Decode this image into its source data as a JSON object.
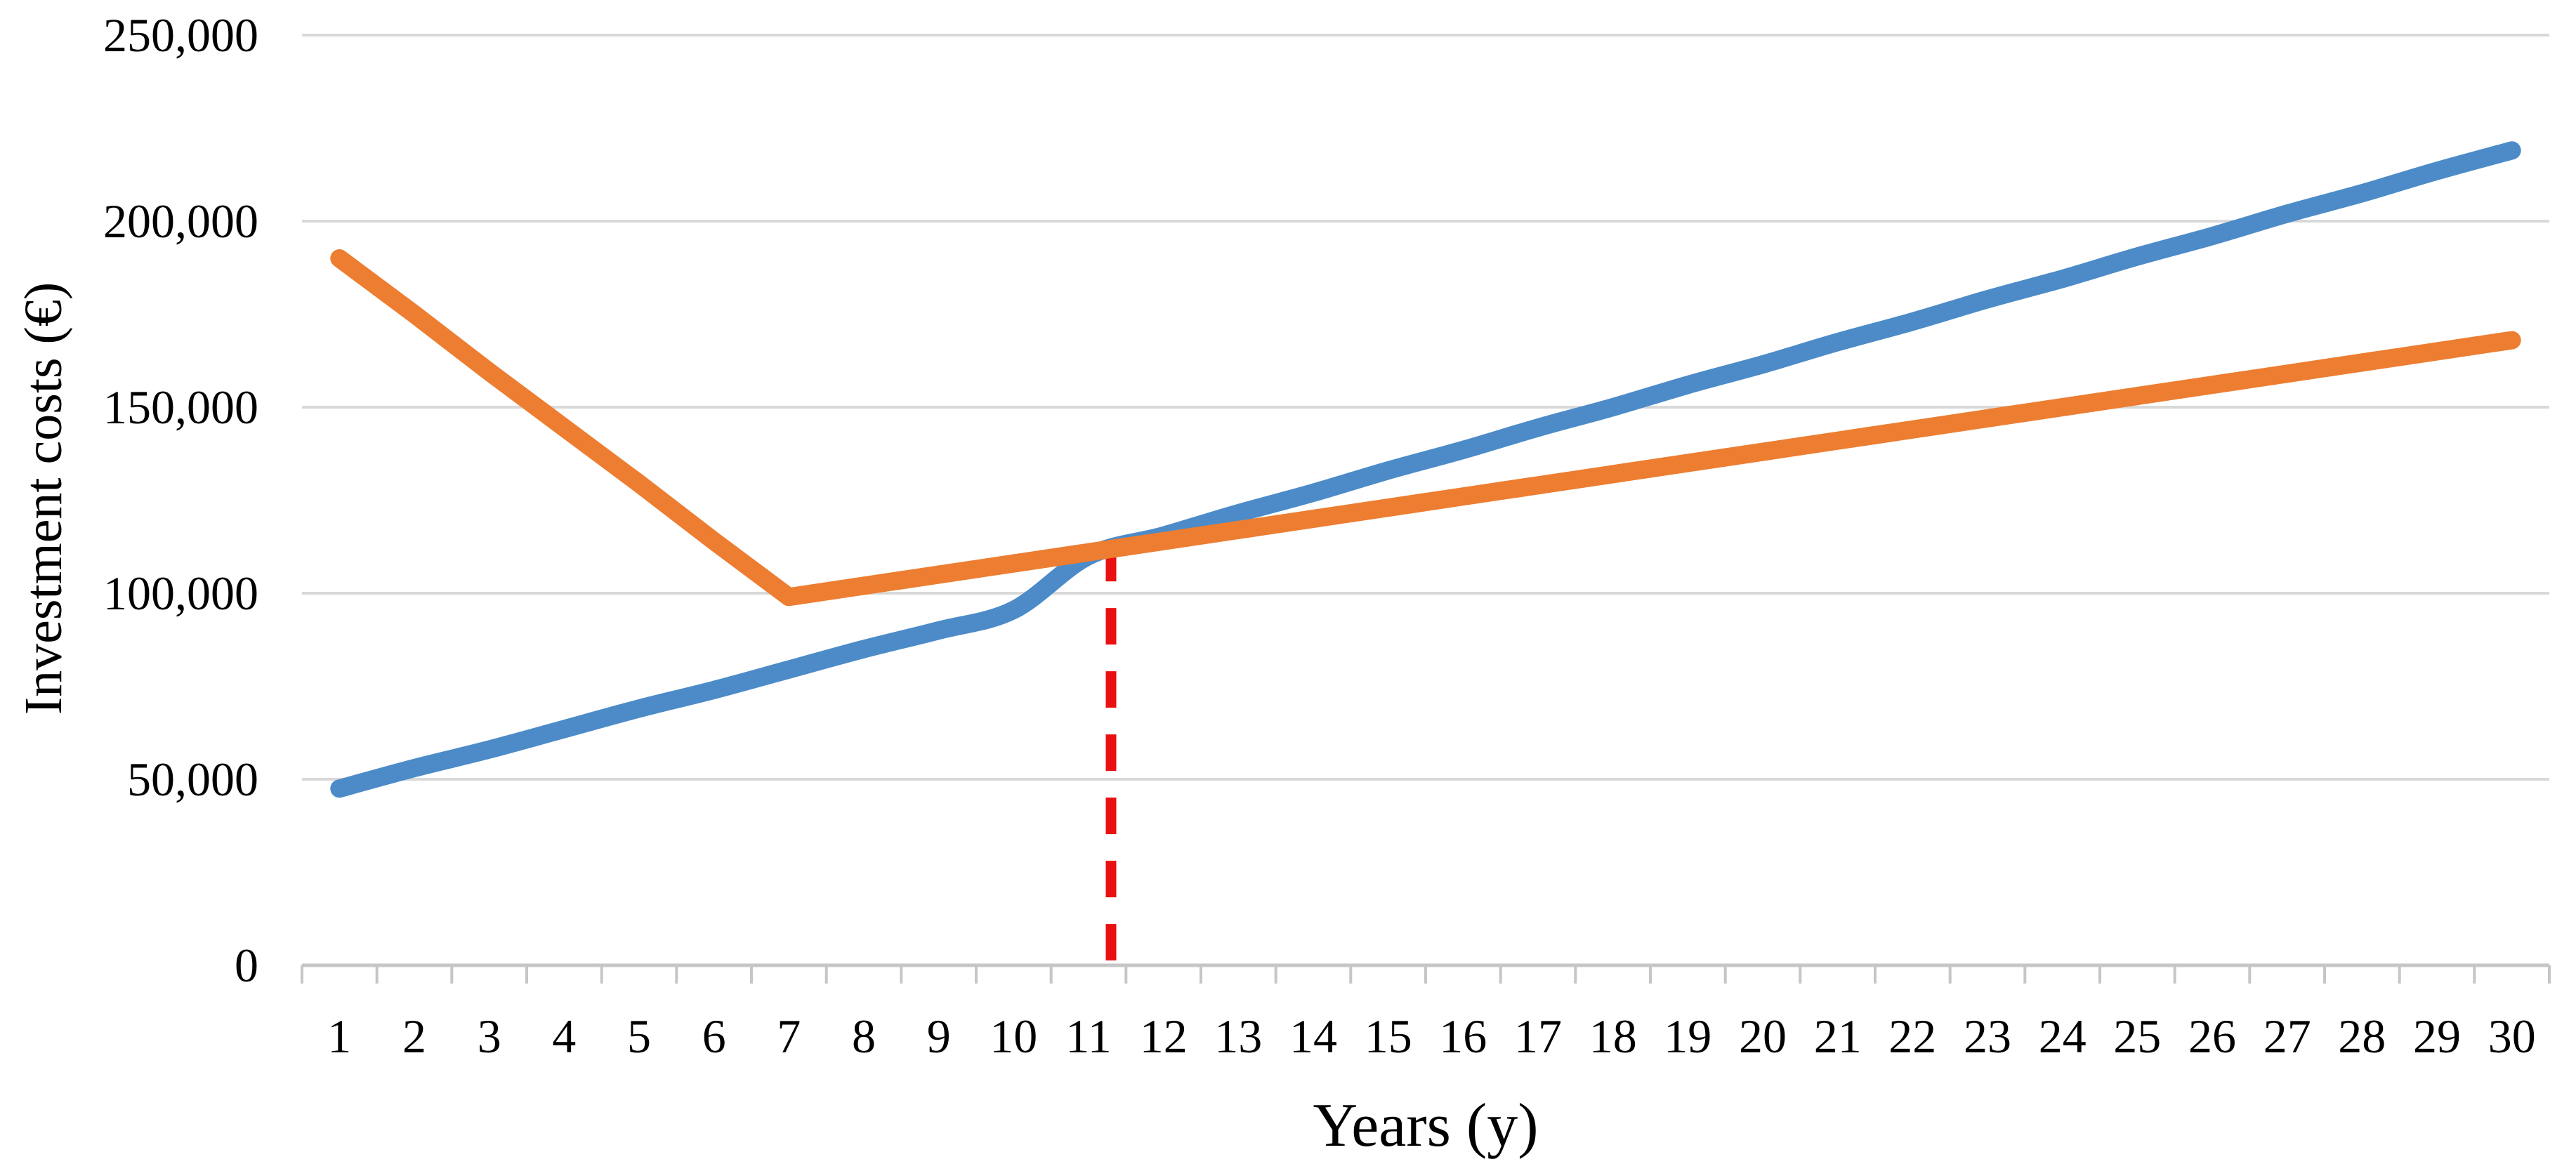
{
  "chart_data": {
    "type": "line",
    "title": "",
    "xlabel": "Years (y)",
    "ylabel": "Investment costs (€)",
    "legend": "none",
    "grid": "horizontal",
    "background": "#FFFFFF",
    "ylim": [
      0,
      250000
    ],
    "y_tick_step": 50000,
    "y_ticks": [
      {
        "value": 0,
        "label": "0"
      },
      {
        "value": 50000,
        "label": "50,000"
      },
      {
        "value": 100000,
        "label": "100,000"
      },
      {
        "value": 150000,
        "label": "150,000"
      },
      {
        "value": 200000,
        "label": "200,000"
      },
      {
        "value": 250000,
        "label": "250,000"
      }
    ],
    "categories": [
      1,
      2,
      3,
      4,
      5,
      6,
      7,
      8,
      9,
      10,
      11,
      12,
      13,
      14,
      15,
      16,
      17,
      18,
      19,
      20,
      21,
      22,
      23,
      24,
      25,
      26,
      27,
      28,
      29,
      30
    ],
    "x_tick_labels": [
      "1",
      "2",
      "3",
      "4",
      "5",
      "6",
      "7",
      "8",
      "9",
      "10",
      "11",
      "12",
      "13",
      "14",
      "15",
      "16",
      "17",
      "18",
      "19",
      "20",
      "21",
      "22",
      "23",
      "24",
      "25",
      "26",
      "27",
      "28",
      "29",
      "30"
    ],
    "series": [
      {
        "name": "blue-line",
        "color": "#4C8BC8",
        "width": 26,
        "smooth": true,
        "values": [
          47500,
          53000,
          58000,
          63500,
          69000,
          74000,
          79500,
          85000,
          90000,
          95500,
          110000,
          115500,
          121500,
          127000,
          133000,
          138500,
          144500,
          150000,
          156000,
          161500,
          167500,
          173000,
          179000,
          184500,
          190500,
          196000,
          202000,
          207500,
          213500,
          219000
        ]
      },
      {
        "name": "orange-line",
        "color": "#ED7D31",
        "width": 26,
        "smooth": false,
        "values": [
          190000,
          175000,
          159500,
          144500,
          129500,
          114000,
          99000,
          102000,
          105000,
          108000,
          111000,
          114000,
          117000,
          120000,
          123000,
          126000,
          129000,
          132000,
          135000,
          138000,
          141000,
          144000,
          147000,
          150000,
          153000,
          156000,
          159000,
          162000,
          165000,
          168000
        ]
      }
    ],
    "annotation": {
      "name": "break-even-line",
      "type": "vertical-dashed-line",
      "x": 11.3,
      "y_from": 0,
      "y_to": 113000,
      "color": "#E81010",
      "width": 15,
      "dash": [
        52,
        38
      ]
    },
    "colors": {
      "grid": "#D9D9D9",
      "axis": "#C6C6C6",
      "text": "#000000"
    }
  }
}
